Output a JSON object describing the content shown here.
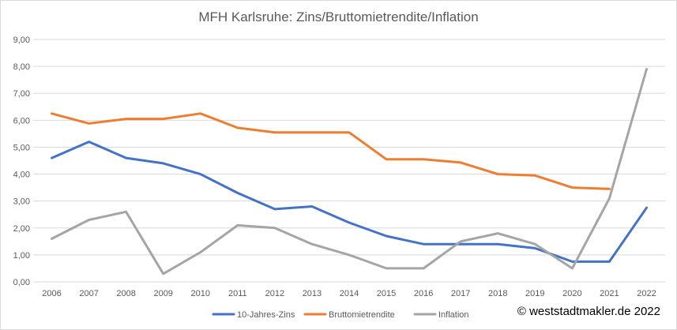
{
  "chart_data": {
    "type": "line",
    "title": "MFH Karlsruhe: Zins/Bruttomietrendite/Inflation",
    "categories": [
      "2006",
      "2007",
      "2008",
      "2009",
      "2010",
      "2011",
      "2012",
      "2013",
      "2014",
      "2015",
      "2016",
      "2017",
      "2018",
      "2019",
      "2020",
      "2021",
      "2022"
    ],
    "ylim": [
      0,
      9
    ],
    "yticks": [
      0,
      1,
      2,
      3,
      4,
      5,
      6,
      7,
      8,
      9
    ],
    "ytick_labels": [
      "0,00",
      "1,00",
      "2,00",
      "3,00",
      "4,00",
      "5,00",
      "6,00",
      "7,00",
      "8,00",
      "9,00"
    ],
    "grid": true,
    "legend_position": "bottom",
    "series": [
      {
        "name": "10-Jahres-Zins",
        "color": "#4472c4",
        "values": [
          4.6,
          5.2,
          4.6,
          4.4,
          4.0,
          3.3,
          2.7,
          2.8,
          2.2,
          1.7,
          1.4,
          1.4,
          1.4,
          1.25,
          0.75,
          0.75,
          2.75
        ]
      },
      {
        "name": "Bruttomietrendite",
        "color": "#ed7d31",
        "values": [
          6.25,
          5.88,
          6.05,
          6.05,
          6.25,
          5.72,
          5.55,
          5.55,
          5.55,
          4.55,
          4.55,
          4.43,
          4.0,
          3.95,
          3.5,
          3.45,
          null
        ]
      },
      {
        "name": "Inflation",
        "color": "#a5a5a5",
        "values": [
          1.6,
          2.3,
          2.6,
          0.3,
          1.1,
          2.1,
          2.0,
          1.4,
          1.0,
          0.5,
          0.5,
          1.5,
          1.8,
          1.4,
          0.5,
          3.1,
          7.9
        ]
      }
    ]
  },
  "copyright": "© weststadtmakler.de 2022"
}
